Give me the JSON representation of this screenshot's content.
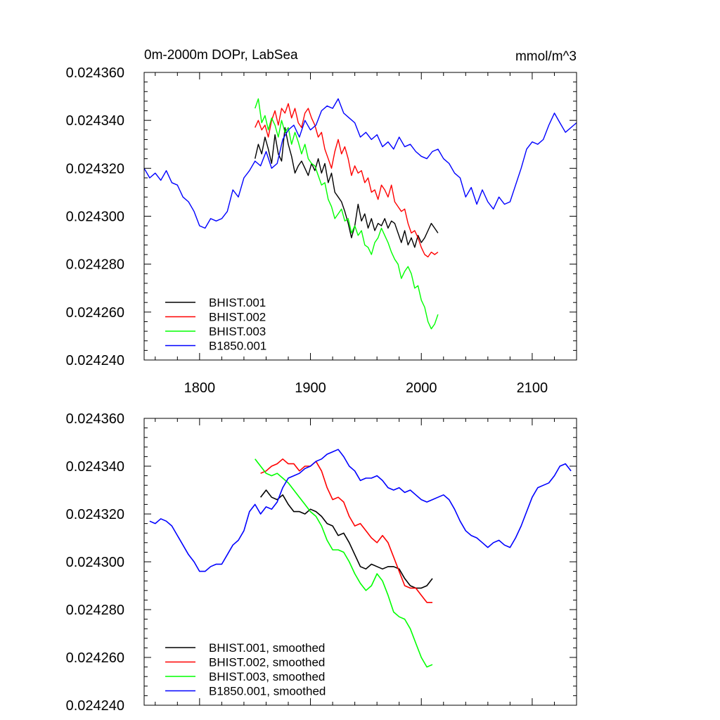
{
  "chart_data": [
    {
      "type": "line",
      "title": "0m-2000m DOPr, LabSea",
      "units": "mmol/m^3",
      "xlim": [
        1750,
        2140
      ],
      "ylim": [
        0.02424,
        0.02436
      ],
      "x_ticks": [
        1800,
        1900,
        2000,
        2100
      ],
      "x_tick_labels": [
        "1800",
        "1900",
        "2000",
        "2100"
      ],
      "y_ticks": [
        0.02424,
        0.02426,
        0.02428,
        0.0243,
        0.02432,
        0.02434,
        0.02436
      ],
      "y_tick_labels": [
        "0.024240",
        "0.024260",
        "0.024280",
        "0.024300",
        "0.024320",
        "0.024340",
        "0.024360"
      ],
      "grid": false,
      "legend_position": "bottom-left",
      "series": [
        {
          "name": "BHIST.001",
          "color": "#000000",
          "x": [
            1850,
            1853,
            1856,
            1859,
            1862,
            1865,
            1868,
            1871,
            1874,
            1877,
            1880,
            1883,
            1886,
            1889,
            1892,
            1895,
            1898,
            1901,
            1904,
            1907,
            1910,
            1913,
            1916,
            1919,
            1922,
            1925,
            1928,
            1931,
            1934,
            1937,
            1940,
            1943,
            1946,
            1949,
            1952,
            1955,
            1958,
            1961,
            1964,
            1967,
            1970,
            1973,
            1976,
            1979,
            1982,
            1985,
            1988,
            1991,
            1994,
            1997,
            2000,
            2003,
            2006,
            2009,
            2012,
            2015
          ],
          "y": [
            0.024324,
            0.02433,
            0.024326,
            0.024333,
            0.024328,
            0.024322,
            0.024334,
            0.024326,
            0.024323,
            0.024337,
            0.02433,
            0.024325,
            0.024318,
            0.024321,
            0.024323,
            0.02432,
            0.024317,
            0.024322,
            0.024319,
            0.024324,
            0.024318,
            0.024322,
            0.024314,
            0.024318,
            0.02431,
            0.024308,
            0.024306,
            0.024302,
            0.024297,
            0.024291,
            0.024296,
            0.024305,
            0.024298,
            0.024301,
            0.024295,
            0.024299,
            0.024294,
            0.024297,
            0.024296,
            0.024299,
            0.024295,
            0.024298,
            0.024297,
            0.024293,
            0.024289,
            0.024294,
            0.024288,
            0.024291,
            0.024287,
            0.024292,
            0.024289,
            0.024291,
            0.024294,
            0.024297,
            0.024295,
            0.024293
          ]
        },
        {
          "name": "BHIST.002",
          "color": "#ff0000",
          "x": [
            1850,
            1853,
            1856,
            1859,
            1862,
            1865,
            1868,
            1871,
            1874,
            1877,
            1880,
            1883,
            1886,
            1889,
            1892,
            1895,
            1898,
            1901,
            1904,
            1907,
            1910,
            1913,
            1916,
            1919,
            1922,
            1925,
            1928,
            1931,
            1934,
            1937,
            1940,
            1943,
            1946,
            1949,
            1952,
            1955,
            1958,
            1961,
            1964,
            1967,
            1970,
            1973,
            1976,
            1979,
            1982,
            1985,
            1988,
            1991,
            1994,
            1997,
            2000,
            2003,
            2006,
            2009,
            2012,
            2015
          ],
          "y": [
            0.024337,
            0.02434,
            0.024336,
            0.024338,
            0.024333,
            0.02434,
            0.024344,
            0.024338,
            0.024345,
            0.024343,
            0.024347,
            0.024341,
            0.024345,
            0.024339,
            0.024337,
            0.024343,
            0.024345,
            0.024341,
            0.024338,
            0.024333,
            0.024335,
            0.024328,
            0.024324,
            0.02432,
            0.024327,
            0.024332,
            0.024326,
            0.024329,
            0.024324,
            0.024317,
            0.024321,
            0.024318,
            0.024319,
            0.024314,
            0.024316,
            0.02431,
            0.024311,
            0.024307,
            0.024313,
            0.024311,
            0.024308,
            0.024313,
            0.024306,
            0.024304,
            0.024302,
            0.024303,
            0.024297,
            0.024293,
            0.024294,
            0.024291,
            0.024287,
            0.024284,
            0.024283,
            0.024285,
            0.024284,
            0.024285
          ]
        },
        {
          "name": "BHIST.003",
          "color": "#00ff00",
          "x": [
            1850,
            1853,
            1856,
            1859,
            1862,
            1865,
            1868,
            1871,
            1874,
            1877,
            1880,
            1883,
            1886,
            1889,
            1892,
            1895,
            1898,
            1901,
            1904,
            1907,
            1910,
            1913,
            1916,
            1919,
            1922,
            1925,
            1928,
            1931,
            1934,
            1937,
            1940,
            1943,
            1946,
            1949,
            1952,
            1955,
            1958,
            1961,
            1964,
            1967,
            1970,
            1973,
            1976,
            1979,
            1982,
            1985,
            1988,
            1991,
            1994,
            1997,
            2000,
            2003,
            2006,
            2009,
            2012,
            2015
          ],
          "y": [
            0.024345,
            0.024349,
            0.024339,
            0.024342,
            0.024336,
            0.024341,
            0.024338,
            0.024333,
            0.02434,
            0.024335,
            0.024337,
            0.02433,
            0.024335,
            0.024331,
            0.024326,
            0.02433,
            0.024324,
            0.024322,
            0.024321,
            0.024317,
            0.024313,
            0.024314,
            0.024307,
            0.024304,
            0.024299,
            0.024301,
            0.024303,
            0.024298,
            0.024299,
            0.024293,
            0.024296,
            0.024292,
            0.024294,
            0.024288,
            0.024287,
            0.024284,
            0.024289,
            0.024291,
            0.024295,
            0.024292,
            0.024289,
            0.024285,
            0.024282,
            0.02428,
            0.024274,
            0.024277,
            0.024279,
            0.024276,
            0.02427,
            0.024271,
            0.024265,
            0.024262,
            0.024256,
            0.024253,
            0.024255,
            0.024259
          ]
        },
        {
          "name": "B1850.001",
          "color": "#0000ff",
          "x": [
            1750,
            1755,
            1760,
            1765,
            1770,
            1775,
            1780,
            1785,
            1790,
            1795,
            1800,
            1805,
            1810,
            1815,
            1820,
            1825,
            1830,
            1835,
            1840,
            1845,
            1850,
            1855,
            1860,
            1865,
            1870,
            1875,
            1880,
            1885,
            1890,
            1895,
            1900,
            1905,
            1910,
            1915,
            1920,
            1925,
            1930,
            1935,
            1940,
            1945,
            1950,
            1955,
            1960,
            1965,
            1970,
            1975,
            1980,
            1985,
            1990,
            1995,
            2000,
            2005,
            2010,
            2015,
            2020,
            2025,
            2030,
            2035,
            2040,
            2045,
            2050,
            2055,
            2060,
            2065,
            2070,
            2075,
            2080,
            2085,
            2090,
            2095,
            2100,
            2105,
            2110,
            2115,
            2120,
            2125,
            2130,
            2135,
            2140
          ],
          "y": [
            0.02432,
            0.024316,
            0.024318,
            0.024315,
            0.024319,
            0.024314,
            0.024313,
            0.024308,
            0.024306,
            0.024302,
            0.024296,
            0.024295,
            0.024299,
            0.024298,
            0.024299,
            0.024302,
            0.024311,
            0.024308,
            0.024316,
            0.024319,
            0.024323,
            0.024321,
            0.024327,
            0.02432,
            0.024322,
            0.024332,
            0.024336,
            0.024338,
            0.024333,
            0.02434,
            0.024336,
            0.024338,
            0.024344,
            0.024346,
            0.024345,
            0.024349,
            0.024343,
            0.024341,
            0.024339,
            0.024333,
            0.024335,
            0.024332,
            0.024334,
            0.024329,
            0.024331,
            0.024328,
            0.024333,
            0.024329,
            0.02433,
            0.024327,
            0.024325,
            0.024324,
            0.024327,
            0.024328,
            0.024324,
            0.024322,
            0.024318,
            0.024316,
            0.024308,
            0.024312,
            0.024305,
            0.024311,
            0.024306,
            0.024303,
            0.024308,
            0.024305,
            0.024306,
            0.024313,
            0.02432,
            0.024328,
            0.024331,
            0.02433,
            0.024332,
            0.024338,
            0.024343,
            0.024339,
            0.024335,
            0.024337,
            0.024339
          ]
        }
      ]
    },
    {
      "type": "line",
      "xlim": [
        1750,
        2140
      ],
      "ylim": [
        0.02424,
        0.02436
      ],
      "x_ticks": [
        1800,
        1900,
        2000,
        2100
      ],
      "y_ticks": [
        0.02424,
        0.02426,
        0.02428,
        0.0243,
        0.02432,
        0.02434,
        0.02436
      ],
      "y_tick_labels": [
        "0.024240",
        "0.024260",
        "0.024280",
        "0.024300",
        "0.024320",
        "0.024340",
        "0.024360"
      ],
      "grid": false,
      "legend_position": "bottom-left",
      "series": [
        {
          "name": "BHIST.001, smoothed",
          "color": "#000000",
          "x": [
            1855,
            1860,
            1865,
            1870,
            1875,
            1880,
            1885,
            1890,
            1895,
            1900,
            1905,
            1910,
            1915,
            1920,
            1925,
            1930,
            1935,
            1940,
            1945,
            1950,
            1955,
            1960,
            1965,
            1970,
            1975,
            1980,
            1985,
            1990,
            1995,
            2000,
            2005,
            2010
          ],
          "y": [
            0.024327,
            0.02433,
            0.024327,
            0.024326,
            0.024328,
            0.024324,
            0.024321,
            0.024321,
            0.02432,
            0.024322,
            0.024321,
            0.024319,
            0.024316,
            0.024315,
            0.024311,
            0.024312,
            0.024308,
            0.024303,
            0.024298,
            0.024297,
            0.024299,
            0.024298,
            0.024297,
            0.024298,
            0.024298,
            0.024297,
            0.024293,
            0.02429,
            0.024289,
            0.024289,
            0.02429,
            0.024293
          ]
        },
        {
          "name": "BHIST.002, smoothed",
          "color": "#ff0000",
          "x": [
            1855,
            1860,
            1865,
            1870,
            1875,
            1880,
            1885,
            1890,
            1895,
            1900,
            1905,
            1910,
            1915,
            1920,
            1925,
            1930,
            1935,
            1940,
            1945,
            1950,
            1955,
            1960,
            1965,
            1970,
            1975,
            1980,
            1985,
            1990,
            1995,
            2000,
            2005,
            2010
          ],
          "y": [
            0.024337,
            0.024338,
            0.02434,
            0.024341,
            0.024343,
            0.024341,
            0.024341,
            0.024338,
            0.02434,
            0.02434,
            0.024342,
            0.024338,
            0.024331,
            0.024326,
            0.024327,
            0.024325,
            0.024319,
            0.024315,
            0.024316,
            0.024313,
            0.02431,
            0.024308,
            0.024311,
            0.024308,
            0.024302,
            0.024296,
            0.02429,
            0.024289,
            0.024289,
            0.024286,
            0.024283,
            0.024283
          ]
        },
        {
          "name": "BHIST.003, smoothed",
          "color": "#00ff00",
          "x": [
            1850,
            1855,
            1860,
            1865,
            1870,
            1875,
            1880,
            1885,
            1890,
            1895,
            1900,
            1905,
            1910,
            1915,
            1920,
            1925,
            1930,
            1935,
            1940,
            1945,
            1950,
            1955,
            1960,
            1965,
            1970,
            1975,
            1980,
            1985,
            1990,
            1995,
            2000,
            2005,
            2010
          ],
          "y": [
            0.024343,
            0.02434,
            0.024337,
            0.024336,
            0.024337,
            0.024335,
            0.024333,
            0.02433,
            0.024327,
            0.024324,
            0.024321,
            0.024319,
            0.024315,
            0.024309,
            0.024305,
            0.024305,
            0.024304,
            0.0243,
            0.024295,
            0.024291,
            0.024288,
            0.02429,
            0.024295,
            0.024292,
            0.024286,
            0.024279,
            0.024277,
            0.024276,
            0.024272,
            0.024266,
            0.02426,
            0.024256,
            0.024257
          ]
        },
        {
          "name": "B1850.001, smoothed",
          "color": "#0000ff",
          "x": [
            1755,
            1760,
            1765,
            1770,
            1775,
            1780,
            1785,
            1790,
            1795,
            1800,
            1805,
            1810,
            1815,
            1820,
            1825,
            1830,
            1835,
            1840,
            1845,
            1850,
            1855,
            1860,
            1865,
            1870,
            1875,
            1880,
            1885,
            1890,
            1895,
            1900,
            1905,
            1910,
            1915,
            1920,
            1925,
            1930,
            1935,
            1940,
            1945,
            1950,
            1955,
            1960,
            1965,
            1970,
            1975,
            1980,
            1985,
            1990,
            1995,
            2000,
            2005,
            2010,
            2015,
            2020,
            2025,
            2030,
            2035,
            2040,
            2045,
            2050,
            2055,
            2060,
            2065,
            2070,
            2075,
            2080,
            2085,
            2090,
            2095,
            2100,
            2105,
            2110,
            2115,
            2120,
            2125,
            2130,
            2135
          ],
          "y": [
            0.024317,
            0.024316,
            0.024318,
            0.024317,
            0.024315,
            0.024311,
            0.024307,
            0.024303,
            0.0243,
            0.024296,
            0.024296,
            0.024298,
            0.024299,
            0.024299,
            0.024303,
            0.024307,
            0.024309,
            0.024313,
            0.024321,
            0.024324,
            0.02432,
            0.024323,
            0.024322,
            0.024325,
            0.024331,
            0.024335,
            0.024336,
            0.024337,
            0.024339,
            0.02434,
            0.024342,
            0.024343,
            0.024345,
            0.024346,
            0.024347,
            0.024344,
            0.02434,
            0.024338,
            0.024334,
            0.024335,
            0.024335,
            0.024336,
            0.024334,
            0.024331,
            0.02433,
            0.024331,
            0.024329,
            0.02433,
            0.024328,
            0.024326,
            0.024325,
            0.024326,
            0.024327,
            0.024328,
            0.024326,
            0.024322,
            0.024317,
            0.024313,
            0.024311,
            0.02431,
            0.024308,
            0.024306,
            0.024308,
            0.024309,
            0.024307,
            0.024306,
            0.02431,
            0.024315,
            0.024321,
            0.024327,
            0.024331,
            0.024332,
            0.024333,
            0.024336,
            0.02434,
            0.024341,
            0.024338
          ]
        }
      ]
    }
  ]
}
